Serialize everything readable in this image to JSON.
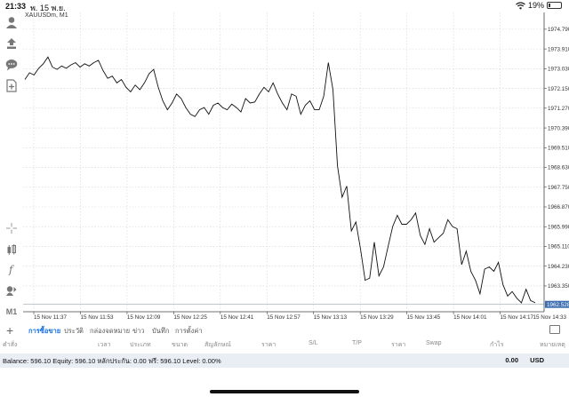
{
  "status_bar": {
    "time": "21:33",
    "date": "พ. 15 พ.ย.",
    "battery": "19%",
    "battery_level": 0.19
  },
  "symbol": "XAUUSDm, M1",
  "left_toolbar": [
    {
      "icon": "user-icon"
    },
    {
      "icon": "transfer-icon"
    },
    {
      "icon": "chat-icon"
    },
    {
      "icon": "add-document-icon"
    },
    {
      "icon": "crosshair-icon"
    },
    {
      "icon": "indicators-icon"
    },
    {
      "icon": "function-icon"
    },
    {
      "icon": "objects-icon"
    },
    {
      "icon": "timeframe-icon",
      "label": "M1"
    }
  ],
  "chart_data": {
    "type": "line",
    "series": [
      {
        "color": "#000000",
        "values": [
          1972.55,
          1972.85,
          1972.75,
          1973.05,
          1973.25,
          1973.55,
          1973.1,
          1973.0,
          1973.15,
          1973.05,
          1973.2,
          1973.3,
          1973.1,
          1973.25,
          1973.15,
          1973.3,
          1973.4,
          1972.95,
          1972.6,
          1972.7,
          1972.4,
          1972.55,
          1972.2,
          1972.0,
          1972.3,
          1972.1,
          1972.4,
          1972.8,
          1973.0,
          1972.2,
          1971.6,
          1971.2,
          1971.5,
          1971.9,
          1971.7,
          1971.3,
          1971.0,
          1970.9,
          1971.2,
          1971.3,
          1971.0,
          1971.4,
          1971.5,
          1971.3,
          1971.2,
          1971.45,
          1971.3,
          1971.1,
          1971.7,
          1971.5,
          1971.55,
          1971.9,
          1972.2,
          1972.0,
          1972.4,
          1971.9,
          1971.5,
          1971.2,
          1971.9,
          1971.8,
          1971.0,
          1971.4,
          1971.6,
          1971.2,
          1971.2,
          1971.8,
          1973.3,
          1972.1,
          1968.7,
          1967.3,
          1967.8,
          1965.8,
          1966.2,
          1965.0,
          1963.6,
          1963.7,
          1965.3,
          1963.8,
          1964.2,
          1965.1,
          1966.0,
          1966.5,
          1966.1,
          1966.1,
          1966.3,
          1966.6,
          1965.6,
          1965.2,
          1965.9,
          1965.3,
          1965.5,
          1965.7,
          1966.3,
          1966.0,
          1965.9,
          1964.3,
          1964.9,
          1964.0,
          1963.6,
          1963.0,
          1964.1,
          1964.2,
          1964.0,
          1964.4,
          1963.4,
          1962.9,
          1963.1,
          1962.8,
          1962.6,
          1963.2,
          1962.7,
          1962.6
        ],
        "last": "1962.528"
      }
    ],
    "x_ticks": [
      "15 Nov 11:37",
      "15 Nov 11:53",
      "15 Nov 12:09",
      "15 Nov 12:25",
      "15 Nov 12:41",
      "15 Nov 12:57",
      "15 Nov 13:13",
      "15 Nov 13:29",
      "15 Nov 13:45",
      "15 Nov 14:01",
      "15 Nov 14:17",
      "15 Nov 14:33"
    ],
    "y_ticks": [
      "1974.790",
      "1973.910",
      "1973.030",
      "1972.150",
      "1971.270",
      "1970.390",
      "1969.510",
      "1968.630",
      "1967.750",
      "1966.870",
      "1965.990",
      "1965.110",
      "1964.230",
      "1963.350"
    ],
    "y_tick_values": [
      1974.79,
      1973.91,
      1973.03,
      1972.15,
      1971.27,
      1970.39,
      1969.51,
      1968.63,
      1967.75,
      1966.87,
      1965.99,
      1965.11,
      1964.23,
      1963.35
    ],
    "last_price_label": "1962.528",
    "last_price_value": 1962.528,
    "ylim": [
      1962.2,
      1975.3
    ],
    "grid": true
  },
  "bottom_panel": {
    "tabs": [
      "การซื้อขาย",
      "ประวัติ",
      "กล่องจดหมาย",
      "ข่าว",
      "บันทึก",
      "การตั้งค่า"
    ],
    "active_tab": 0,
    "headers": [
      "คำสั่ง",
      "เวลา",
      "ประเภท",
      "ขนาด",
      "สัญลักษณ์",
      "ราคา",
      "S/L",
      "T/P",
      "ราคา",
      "Swap",
      "กำไร",
      "หมายเหตุ"
    ],
    "balance_text": "Balance: 596.10 Equity: 596.10 หลักประกัน: 0.00 ฟรี: 596.10 Level: 0.00%",
    "profit": "0.00",
    "currency": "USD"
  }
}
